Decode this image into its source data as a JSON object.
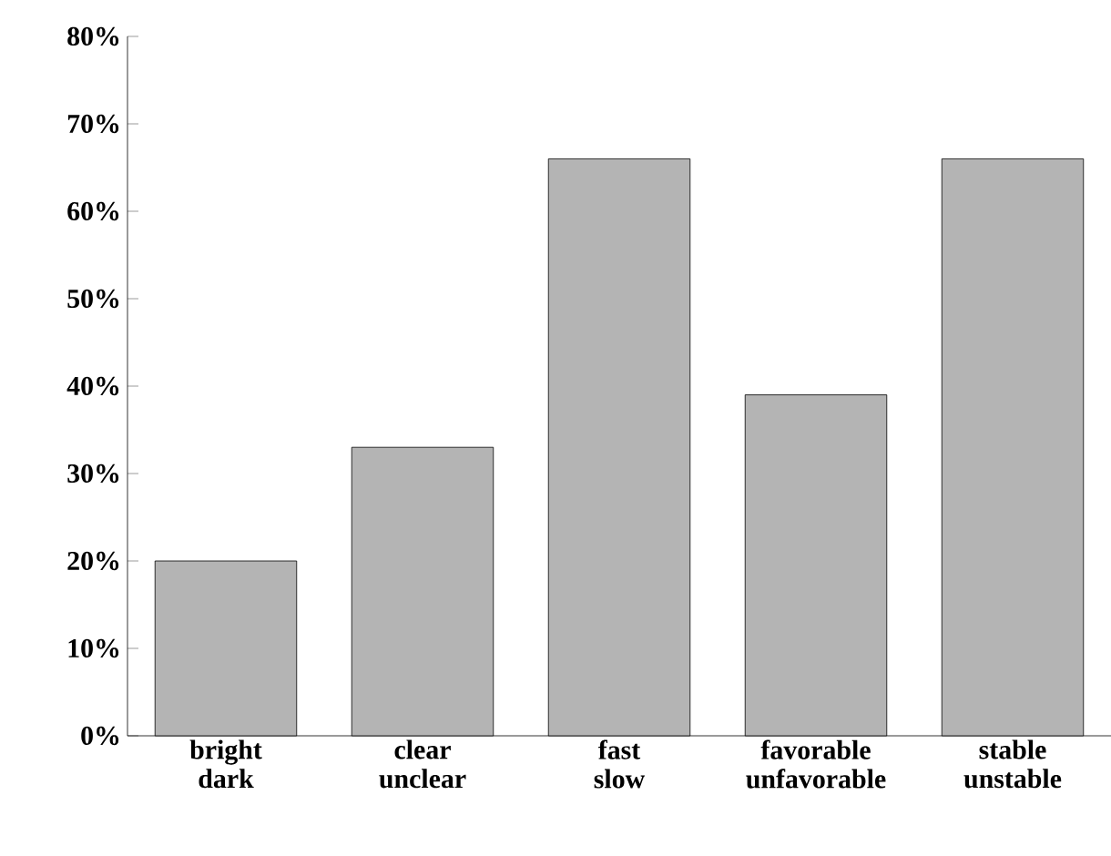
{
  "chart_data": {
    "type": "bar",
    "categories": [
      "bright dark",
      "clear unclear",
      "fast slow",
      "favorable unfavorable",
      "stable unstable"
    ],
    "values": [
      20,
      33,
      66,
      39,
      66
    ],
    "color": "#b4b4b4",
    "ylim": [
      0,
      80
    ],
    "yticks": [
      {
        "value": 0,
        "label": "0%"
      },
      {
        "value": 10,
        "label": "10%"
      },
      {
        "value": 20,
        "label": "20%"
      },
      {
        "value": 30,
        "label": "30%"
      },
      {
        "value": 40,
        "label": "40%"
      },
      {
        "value": 50,
        "label": "50%"
      },
      {
        "value": 60,
        "label": "60%"
      },
      {
        "value": 70,
        "label": "70%"
      },
      {
        "value": 80,
        "label": "80%"
      }
    ],
    "grid": false
  }
}
